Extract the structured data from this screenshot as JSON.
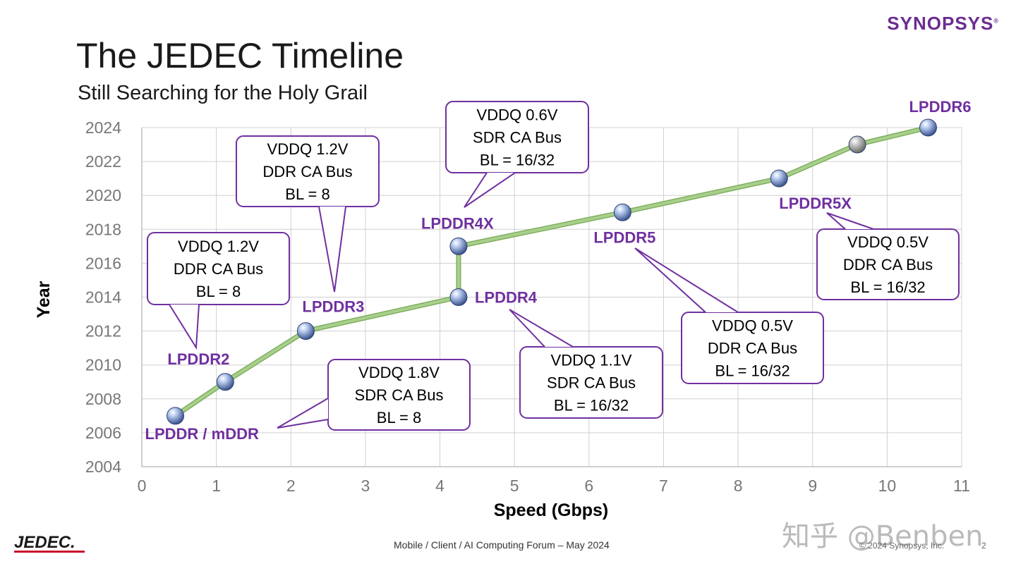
{
  "slide": {
    "brand": "SYNOPSYS",
    "title": "The JEDEC Timeline",
    "subtitle": "Still Searching for the Holy Grail",
    "footer": "Mobile / Client / AI Computing Forum – May 2024",
    "copyright": "© 2024 Synopsys, Inc.",
    "page": "2",
    "jedec_logo": "JEDEC.",
    "watermark": "知乎 @Benben"
  },
  "chart_data": {
    "type": "scatter",
    "xlabel": "Speed (Gbps)",
    "ylabel": "Year",
    "xlim": [
      0,
      11
    ],
    "ylim": [
      2004,
      2024
    ],
    "x_ticks": [
      "0",
      "1",
      "2",
      "3",
      "4",
      "5",
      "6",
      "7",
      "8",
      "9",
      "10",
      "11"
    ],
    "y_ticks": [
      "2004",
      "2006",
      "2008",
      "2010",
      "2012",
      "2014",
      "2016",
      "2018",
      "2020",
      "2022",
      "2024"
    ],
    "grid": true,
    "line_color": "#a8d08d",
    "marker_color": "#8fa8d8",
    "label_color": "#7030a0",
    "points": [
      {
        "x": 0.45,
        "y": 2007,
        "label": "LPDDR / mDDR"
      },
      {
        "x": 1.12,
        "y": 2009,
        "label": "LPDDR2"
      },
      {
        "x": 2.2,
        "y": 2012,
        "label": "LPDDR3"
      },
      {
        "x": 4.25,
        "y": 2014,
        "label": "LPDDR4"
      },
      {
        "x": 4.25,
        "y": 2017,
        "label": "LPDDR4X"
      },
      {
        "x": 6.45,
        "y": 2019,
        "label": "LPDDR5"
      },
      {
        "x": 8.55,
        "y": 2021,
        "label": "LPDDR5X"
      },
      {
        "x": 9.6,
        "y": 2023,
        "label": "",
        "color": "#999999"
      },
      {
        "x": 10.55,
        "y": 2024,
        "label": "LPDDR6"
      }
    ],
    "callouts": [
      {
        "lines": [
          "VDDQ 1.2V",
          "DDR CA Bus",
          "BL = 8"
        ]
      },
      {
        "lines": [
          "VDDQ 1.2V",
          "DDR CA Bus",
          "BL = 8"
        ]
      },
      {
        "lines": [
          "VDDQ 0.6V",
          "SDR CA Bus",
          "BL = 16/32"
        ]
      },
      {
        "lines": [
          "VDDQ 1.8V",
          "SDR CA Bus",
          "BL = 8"
        ]
      },
      {
        "lines": [
          "VDDQ 1.1V",
          "SDR CA Bus",
          "BL = 16/32"
        ]
      },
      {
        "lines": [
          "VDDQ 0.5V",
          "DDR CA Bus",
          "BL = 16/32"
        ]
      },
      {
        "lines": [
          "VDDQ 0.5V",
          "DDR CA Bus",
          "BL = 16/32"
        ]
      }
    ]
  }
}
